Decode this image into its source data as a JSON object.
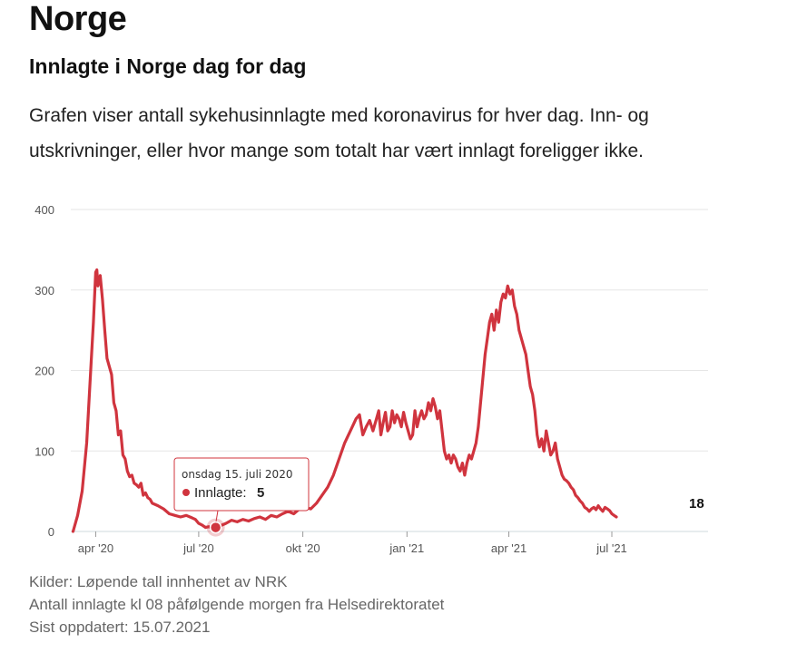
{
  "header": {
    "page_title": "Norge",
    "chart_title": "Innlagte i Norge dag for dag",
    "description": "Grafen viser antall sykehusinnlagte med koronavirus for hver dag. Inn- og utskrivninger, eller hvor mange som totalt har vært innlagt foreligger ikke."
  },
  "tooltip": {
    "date": "onsdag 15. juli 2020",
    "label": "Innlagte:",
    "value": "5"
  },
  "end_label": "18",
  "colors": {
    "line": "#d0343e",
    "grid": "#e6e6e6",
    "axis": "#555555",
    "tooltip_border": "#d0343e"
  },
  "chart_data": {
    "type": "line",
    "title": "Innlagte i Norge dag for dag",
    "xlabel": "",
    "ylabel": "",
    "ylim": [
      0,
      400
    ],
    "yticks": [
      0,
      100,
      200,
      300,
      400
    ],
    "xlim": [
      -22,
      541
    ],
    "xticks": [
      {
        "day": 0,
        "label": "apr '20"
      },
      {
        "day": 91,
        "label": "jul '20"
      },
      {
        "day": 183,
        "label": "okt '20"
      },
      {
        "day": 275,
        "label": "jan '21"
      },
      {
        "day": 365,
        "label": "apr '21"
      },
      {
        "day": 456,
        "label": "jul '21"
      }
    ],
    "series": [
      {
        "name": "Innlagte",
        "x": [
          -20,
          -16,
          -12,
          -8,
          -4,
          -2,
          0,
          1,
          2,
          4,
          6,
          8,
          10,
          14,
          16,
          18,
          20,
          22,
          24,
          26,
          28,
          30,
          32,
          34,
          36,
          38,
          40,
          42,
          44,
          46,
          48,
          50,
          55,
          60,
          65,
          70,
          75,
          80,
          85,
          88,
          91,
          94,
          97,
          100,
          103,
          106,
          110,
          115,
          120,
          125,
          130,
          135,
          140,
          145,
          150,
          155,
          160,
          165,
          170,
          175,
          180,
          185,
          190,
          195,
          200,
          205,
          210,
          215,
          220,
          225,
          230,
          233,
          236,
          239,
          242,
          245,
          248,
          250,
          252,
          254,
          256,
          258,
          260,
          262,
          264,
          266,
          268,
          270,
          272,
          274,
          276,
          278,
          280,
          282,
          284,
          286,
          288,
          290,
          292,
          294,
          296,
          298,
          300,
          302,
          304,
          306,
          308,
          310,
          312,
          314,
          316,
          318,
          320,
          322,
          324,
          326,
          328,
          330,
          332,
          334,
          336,
          338,
          340,
          342,
          344,
          346,
          348,
          350,
          352,
          354,
          356,
          358,
          360,
          362,
          364,
          366,
          368,
          370,
          372,
          374,
          376,
          378,
          380,
          382,
          384,
          386,
          388,
          390,
          392,
          394,
          396,
          398,
          400,
          402,
          404,
          406,
          408,
          410,
          412,
          414,
          416,
          418,
          420,
          422,
          424,
          426,
          428,
          430,
          432,
          434,
          436,
          438,
          440,
          442,
          444,
          446,
          448,
          450,
          452,
          454,
          456,
          458,
          460
        ],
        "y": [
          0,
          20,
          50,
          110,
          210,
          260,
          322,
          325,
          305,
          318,
          288,
          250,
          215,
          195,
          160,
          150,
          120,
          125,
          95,
          90,
          75,
          68,
          70,
          60,
          58,
          55,
          60,
          45,
          48,
          42,
          40,
          35,
          32,
          28,
          22,
          20,
          18,
          20,
          17,
          15,
          10,
          8,
          5,
          6,
          4,
          5,
          7,
          10,
          14,
          12,
          15,
          13,
          16,
          18,
          15,
          20,
          18,
          22,
          25,
          22,
          28,
          30,
          28,
          35,
          45,
          55,
          70,
          90,
          110,
          125,
          140,
          145,
          120,
          130,
          138,
          125,
          140,
          150,
          120,
          135,
          148,
          125,
          130,
          150,
          135,
          145,
          140,
          130,
          148,
          135,
          125,
          115,
          120,
          150,
          130,
          142,
          150,
          140,
          145,
          160,
          150,
          165,
          155,
          140,
          150,
          125,
          100,
          90,
          95,
          85,
          95,
          90,
          80,
          75,
          85,
          70,
          85,
          95,
          90,
          100,
          110,
          130,
          160,
          190,
          220,
          240,
          260,
          270,
          250,
          275,
          260,
          285,
          295,
          290,
          305,
          295,
          300,
          280,
          270,
          250,
          240,
          230,
          220,
          200,
          180,
          170,
          150,
          120,
          105,
          115,
          100,
          125,
          110,
          95,
          100,
          110,
          90,
          80,
          70,
          65,
          63,
          60,
          55,
          52,
          45,
          42,
          38,
          35,
          30,
          28,
          25,
          28,
          30,
          27,
          32,
          28,
          25,
          30,
          28,
          26,
          22,
          20,
          18
        ]
      }
    ],
    "highlight": {
      "day": 106,
      "value": 5
    }
  },
  "footer": {
    "line1": "Kilder: Løpende tall innhentet av NRK",
    "line2": "Antall innlagte kl 08 påfølgende morgen fra Helsedirektoratet",
    "line3": "Sist oppdatert: 15.07.2021"
  }
}
